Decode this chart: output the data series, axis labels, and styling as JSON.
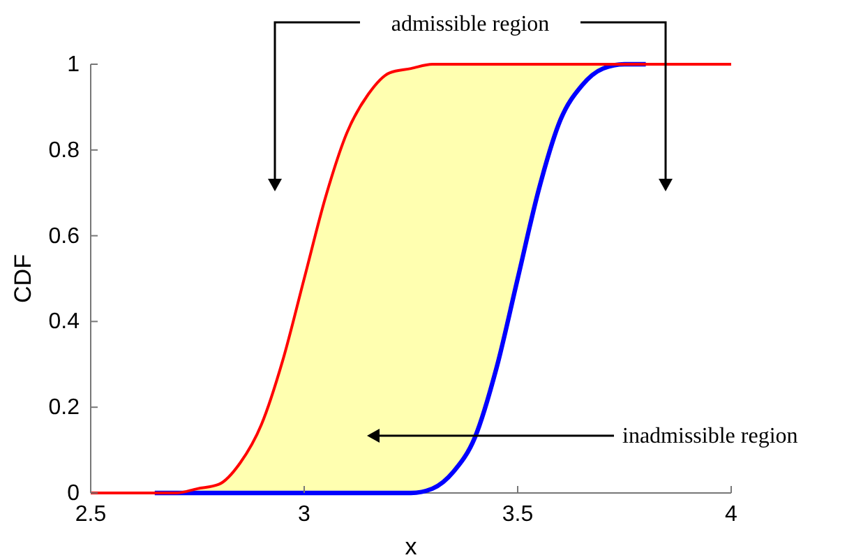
{
  "chart_data": {
    "type": "line",
    "xlabel": "x",
    "ylabel": "CDF",
    "x": [
      2.5,
      2.55,
      2.6,
      2.65,
      2.7,
      2.75,
      2.8,
      2.85,
      2.9,
      2.95,
      3.0,
      3.05,
      3.1,
      3.15,
      3.2,
      3.25,
      3.3,
      3.35,
      3.4,
      3.45,
      3.5,
      3.55,
      3.6,
      3.65,
      3.7,
      3.75,
      3.8,
      3.85,
      3.9,
      3.95,
      4.0
    ],
    "series": [
      {
        "color": "#0000ff",
        "values": [
          null,
          null,
          null,
          0,
          0,
          0,
          0,
          0,
          0,
          0,
          0,
          0,
          0,
          0,
          0,
          0,
          0.01,
          0.05,
          0.13,
          0.29,
          0.5,
          0.71,
          0.87,
          0.95,
          0.99,
          1,
          1,
          null,
          null,
          null,
          null
        ]
      },
      {
        "color": "#ff0000",
        "values": [
          0,
          0,
          0,
          0,
          0,
          0.01,
          0.02,
          0.07,
          0.16,
          0.31,
          0.5,
          0.69,
          0.84,
          0.93,
          0.98,
          0.99,
          1,
          1,
          1,
          1,
          1,
          1,
          1,
          1,
          1,
          1,
          1,
          1,
          1,
          1,
          1
        ],
        "lower": [
          0,
          0,
          0,
          0,
          0,
          0,
          0,
          0,
          0,
          0,
          0,
          0,
          0,
          0,
          0,
          0,
          0.01,
          0.05,
          0.13,
          0.29,
          0.5,
          0.71,
          0.87,
          0.95,
          0.99,
          1,
          1,
          1,
          1,
          1,
          1
        ],
        "upper": [
          0,
          0,
          0,
          0,
          0,
          0.01,
          0.02,
          0.07,
          0.16,
          0.31,
          0.5,
          0.69,
          0.84,
          0.93,
          0.98,
          0.99,
          1,
          1,
          1,
          1,
          1,
          1,
          1,
          1,
          1,
          1,
          1,
          1,
          1,
          1,
          1
        ]
      }
    ],
    "xlim": [
      2.5,
      4
    ],
    "xticks": [
      2.5,
      3,
      3.5,
      4
    ],
    "ylim": [
      0,
      1
    ],
    "yticks": [
      0,
      0.2,
      0.4,
      0.6,
      0.8,
      1
    ],
    "annotations": [
      "admissible region",
      "inadmissible region"
    ]
  }
}
